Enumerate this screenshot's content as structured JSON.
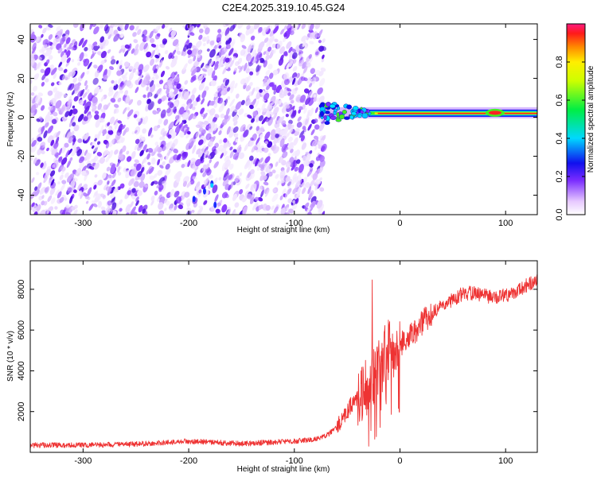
{
  "title": "C2E4.2025.319.10.45.G24",
  "chart_data": [
    {
      "type": "heatmap",
      "name": "spectrogram",
      "xlabel": "Height of straight line (km)",
      "ylabel": "Frequency (Hz)",
      "xlim": [
        -350,
        130
      ],
      "ylim": [
        -50,
        48
      ],
      "xticks": [
        -300,
        -200,
        -100,
        0,
        100
      ],
      "yticks": [
        -40,
        -20,
        0,
        20,
        40
      ],
      "grid": false,
      "noise_region_x": [
        -350,
        -72
      ],
      "signal_track": {
        "x_start": -75,
        "x_end": 130,
        "frequency_hz": 1.5,
        "dispersed_segment_x": [
          -75,
          -30
        ]
      },
      "colorbar": {
        "label": "Normalized spectral amplitude",
        "range": [
          0.0,
          1.0
        ],
        "ticks": [
          0.0,
          0.2,
          0.4,
          0.6,
          0.8
        ]
      }
    },
    {
      "type": "line",
      "name": "snr",
      "xlabel": "Height of straight line (km)",
      "ylabel": "SNR (10 * v/v)",
      "xlim": [
        -350,
        130
      ],
      "ylim": [
        0,
        9400
      ],
      "xticks": [
        -300,
        -200,
        -100,
        0,
        100
      ],
      "yticks": [
        2000,
        4000,
        6000,
        8000
      ],
      "grid": false,
      "series": [
        {
          "name": "SNR",
          "color": "#ee3333",
          "x": [
            -350,
            -300,
            -250,
            -200,
            -150,
            -120,
            -100,
            -80,
            -70,
            -60,
            -50,
            -40,
            -30,
            -20,
            -10,
            0,
            10,
            20,
            30,
            40,
            50,
            60,
            70,
            80,
            90,
            100,
            110,
            120,
            130
          ],
          "y": [
            350,
            350,
            400,
            550,
            420,
            500,
            550,
            650,
            800,
            1200,
            2000,
            2800,
            3300,
            4300,
            5100,
            5300,
            5700,
            6300,
            6800,
            7200,
            7500,
            7800,
            7800,
            7700,
            7600,
            7700,
            7900,
            8200,
            8400
          ]
        }
      ]
    }
  ]
}
